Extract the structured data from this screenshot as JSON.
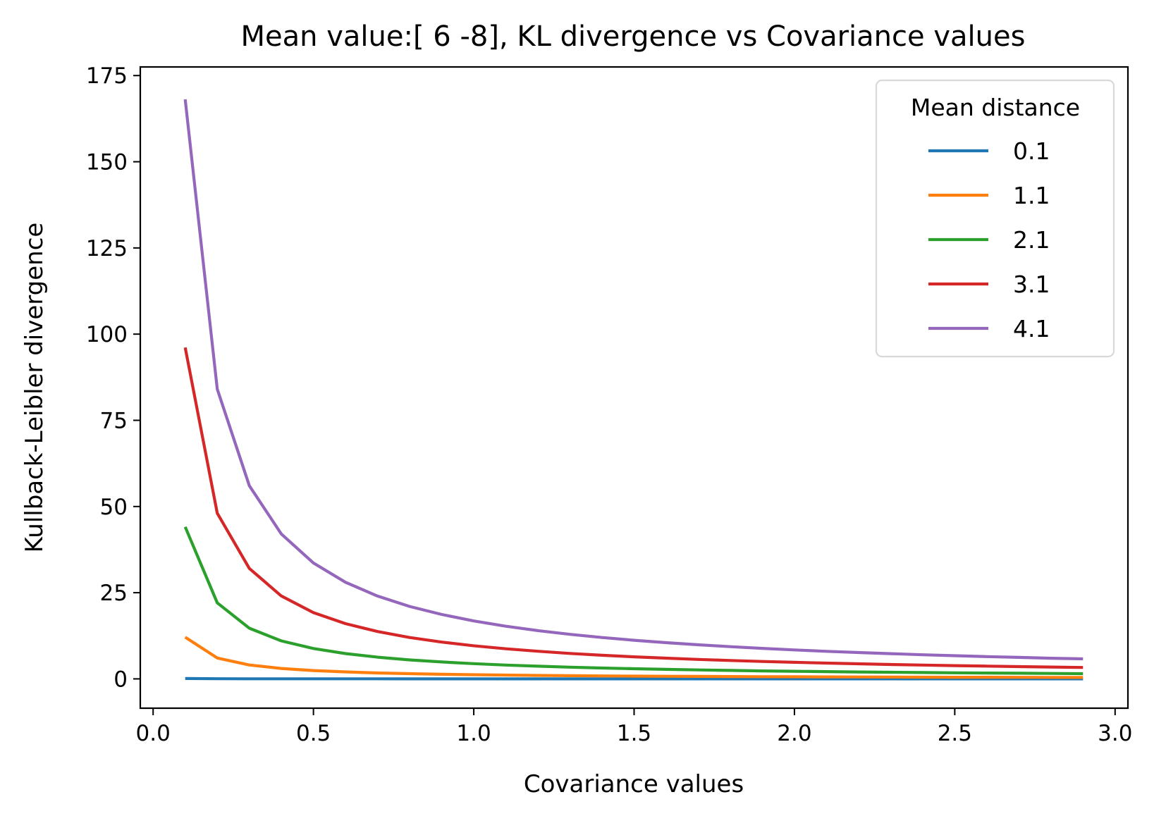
{
  "chart_data": {
    "type": "line",
    "title": "Mean value:[ 6 -8], KL divergence vs Covariance values",
    "xlabel": "Covariance values",
    "ylabel": "Kullback-Leibler divergence",
    "xlim": [
      -0.04,
      3.04
    ],
    "ylim": [
      -8.5,
      177.5
    ],
    "xticks": [
      0.0,
      0.5,
      1.0,
      1.5,
      2.0,
      2.5,
      3.0
    ],
    "xtick_labels": [
      "0.0",
      "0.5",
      "1.0",
      "1.5",
      "2.0",
      "2.5",
      "3.0"
    ],
    "yticks": [
      0,
      25,
      50,
      75,
      100,
      125,
      150,
      175
    ],
    "ytick_labels": [
      "0",
      "25",
      "50",
      "75",
      "100",
      "125",
      "150",
      "175"
    ],
    "grid": false,
    "legend": {
      "title": "Mean distance",
      "position": "top-right"
    },
    "x": [
      0.1,
      0.2,
      0.3,
      0.4,
      0.5,
      0.6,
      0.7,
      0.8,
      0.9,
      1.0,
      1.1,
      1.2,
      1.3,
      1.4,
      1.5,
      1.6,
      1.7,
      1.8,
      1.9,
      2.0,
      2.1,
      2.2,
      2.3,
      2.4,
      2.5,
      2.6,
      2.7,
      2.8,
      2.9
    ],
    "series": [
      {
        "name": "0.1",
        "color": "#1f77b4",
        "values": [
          0.1,
          0.05,
          0.033,
          0.025,
          0.02,
          0.017,
          0.014,
          0.0125,
          0.011,
          0.01,
          0.009,
          0.0083,
          0.0077,
          0.0071,
          0.0067,
          0.0063,
          0.0059,
          0.0056,
          0.0053,
          0.005,
          0.0048,
          0.0045,
          0.0043,
          0.0042,
          0.004,
          0.0038,
          0.0037,
          0.0036,
          0.0034
        ]
      },
      {
        "name": "1.1",
        "color": "#ff7f0e",
        "values": [
          12.1,
          6.05,
          4.03,
          3.03,
          2.42,
          2.02,
          1.73,
          1.51,
          1.34,
          1.21,
          1.1,
          1.01,
          0.93,
          0.86,
          0.81,
          0.76,
          0.71,
          0.67,
          0.64,
          0.61,
          0.58,
          0.55,
          0.53,
          0.5,
          0.48,
          0.47,
          0.45,
          0.43,
          0.42
        ]
      },
      {
        "name": "2.1",
        "color": "#2ca02c",
        "values": [
          44.1,
          22.05,
          14.7,
          11.03,
          8.82,
          7.35,
          6.3,
          5.51,
          4.9,
          4.41,
          4.01,
          3.68,
          3.39,
          3.15,
          2.94,
          2.76,
          2.59,
          2.45,
          2.32,
          2.21,
          2.1,
          2.0,
          1.92,
          1.84,
          1.76,
          1.7,
          1.63,
          1.58,
          1.52
        ]
      },
      {
        "name": "3.1",
        "color": "#d62728",
        "values": [
          96.1,
          48.05,
          32.03,
          24.03,
          19.22,
          16.02,
          13.73,
          12.01,
          10.68,
          9.61,
          8.74,
          8.01,
          7.39,
          6.86,
          6.41,
          6.01,
          5.65,
          5.34,
          5.06,
          4.81,
          4.58,
          4.37,
          4.18,
          4.0,
          3.84,
          3.7,
          3.56,
          3.43,
          3.31
        ]
      },
      {
        "name": "4.1",
        "color": "#9467bd",
        "values": [
          168.1,
          84.05,
          56.03,
          42.03,
          33.62,
          28.02,
          24.01,
          21.01,
          18.68,
          16.81,
          15.28,
          14.01,
          12.93,
          12.01,
          11.21,
          10.51,
          9.89,
          9.34,
          8.85,
          8.41,
          8.0,
          7.64,
          7.31,
          7.0,
          6.72,
          6.47,
          6.23,
          6.0,
          5.8
        ]
      }
    ]
  }
}
